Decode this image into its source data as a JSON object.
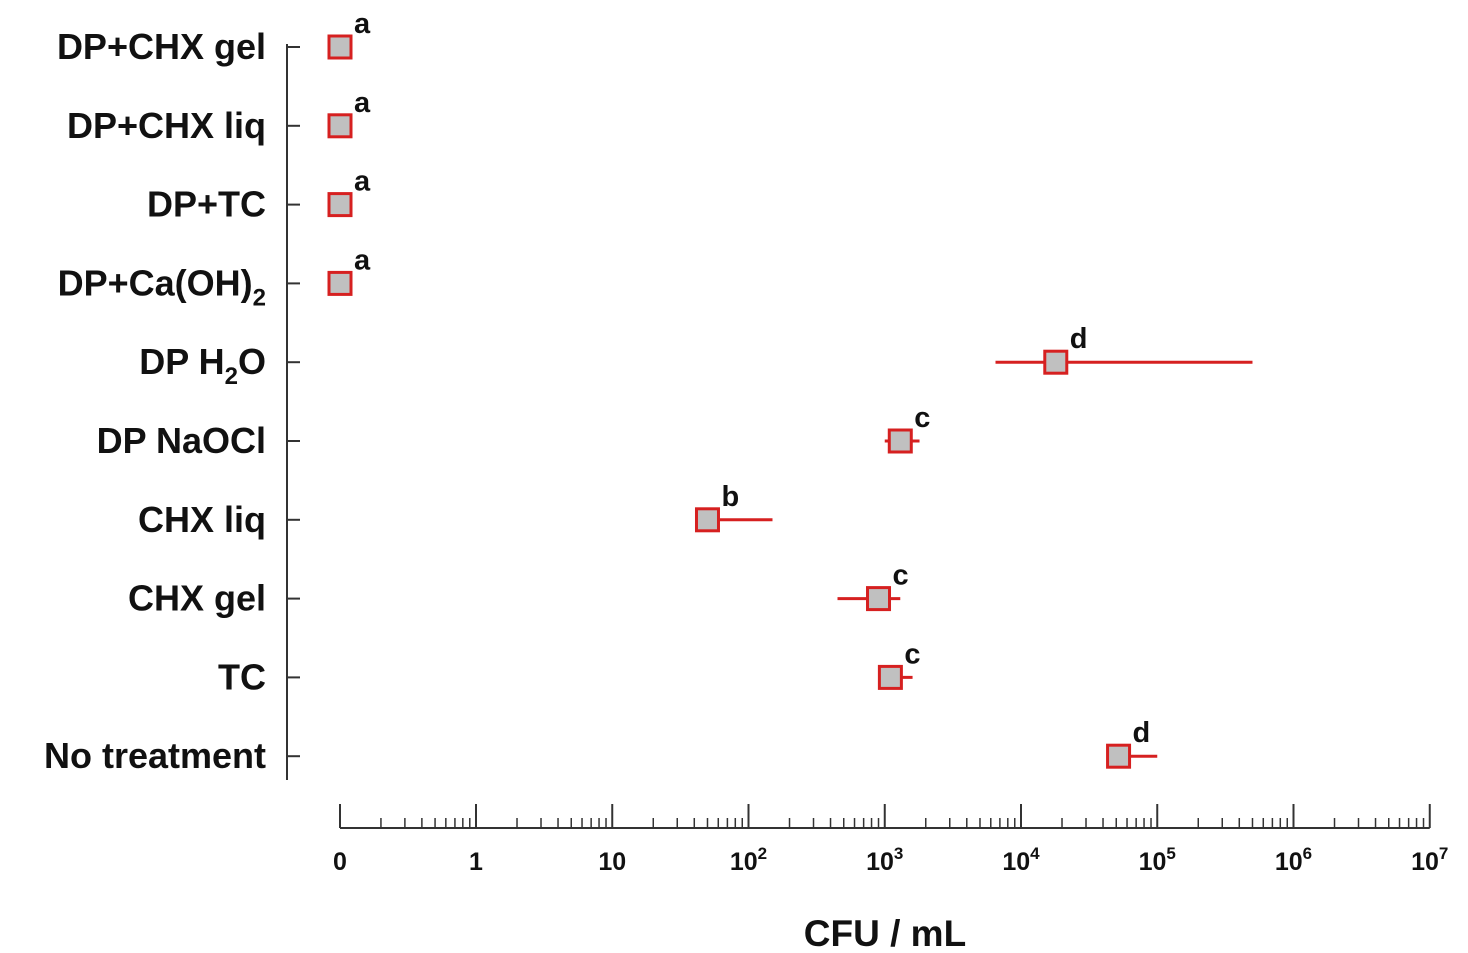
{
  "chart_data": {
    "type": "scatter",
    "title": "",
    "xlabel": "CFU / mL",
    "ylabel": "",
    "x_scale": "log",
    "x_ticks": [
      {
        "base": "0",
        "sup": ""
      },
      {
        "base": "1",
        "sup": ""
      },
      {
        "base": "10",
        "sup": ""
      },
      {
        "base": "10",
        "sup": "2"
      },
      {
        "base": "10",
        "sup": "3"
      },
      {
        "base": "10",
        "sup": "4"
      },
      {
        "base": "10",
        "sup": "5"
      },
      {
        "base": "10",
        "sup": "6"
      },
      {
        "base": "10",
        "sup": "7"
      }
    ],
    "marker_fill": "#c0c0c0",
    "marker_stroke": "#d62020",
    "errorbar_color": "#d62020",
    "categories": [
      {
        "label": "DP+CHX gel",
        "sub": "",
        "tail": "",
        "value": 0,
        "err_low": 0,
        "err_high": 0,
        "letter": "a"
      },
      {
        "label": "DP+CHX liq",
        "sub": "",
        "tail": "",
        "value": 0,
        "err_low": 0,
        "err_high": 0,
        "letter": "a"
      },
      {
        "label": "DP+TC",
        "sub": "",
        "tail": "",
        "value": 0,
        "err_low": 0,
        "err_high": 0,
        "letter": "a"
      },
      {
        "label": "DP+Ca(OH)",
        "sub": "2",
        "tail": "",
        "value": 0,
        "err_low": 0,
        "err_high": 0,
        "letter": "a"
      },
      {
        "label": "DP H",
        "sub": "2",
        "tail": "O",
        "value": 18000,
        "err_low": 6500,
        "err_high": 500000,
        "letter": "d"
      },
      {
        "label": "DP NaOCl",
        "sub": "",
        "tail": "",
        "value": 1300,
        "err_low": 1000,
        "err_high": 1800,
        "letter": "c"
      },
      {
        "label": "CHX liq",
        "sub": "",
        "tail": "",
        "value": 50,
        "err_low": 50,
        "err_high": 150,
        "letter": "b"
      },
      {
        "label": "CHX gel",
        "sub": "",
        "tail": "",
        "value": 900,
        "err_low": 450,
        "err_high": 1300,
        "letter": "c"
      },
      {
        "label": "TC",
        "sub": "",
        "tail": "",
        "value": 1100,
        "err_low": 1100,
        "err_high": 1600,
        "letter": "c"
      },
      {
        "label": "No treatment",
        "sub": "",
        "tail": "",
        "value": 52000,
        "err_low": 52000,
        "err_high": 100000,
        "letter": "d"
      }
    ]
  }
}
